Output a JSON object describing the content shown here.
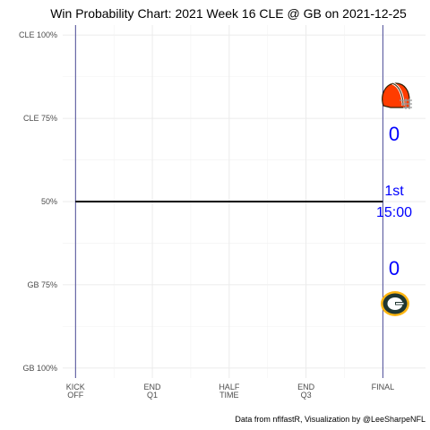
{
  "chart_data": {
    "type": "line",
    "title": "Win Probability Chart: 2021 Week 16 CLE @ GB on 2021-12-25",
    "caption": "Data from nflfastR, Visualization by @LeeSharpeNFL",
    "xlabel": "",
    "ylabel": "",
    "x_ticks": [
      {
        "value": 0,
        "lines": [
          "KICK",
          "OFF"
        ]
      },
      {
        "value": 900,
        "lines": [
          "END",
          "Q1"
        ]
      },
      {
        "value": 1800,
        "lines": [
          "HALF",
          "TIME"
        ]
      },
      {
        "value": 2700,
        "lines": [
          "END",
          "Q3"
        ]
      },
      {
        "value": 3600,
        "lines": [
          "FINAL"
        ]
      }
    ],
    "xlim": [
      -150,
      4100
    ],
    "y_ticks": [
      {
        "value": 1.0,
        "label": "CLE 100%"
      },
      {
        "value": 0.75,
        "label": "CLE 75%"
      },
      {
        "value": 0.5,
        "label": "50%"
      },
      {
        "value": 0.25,
        "label": "GB 75%"
      },
      {
        "value": 0.0,
        "label": "GB 100%"
      }
    ],
    "ylim": [
      -0.03,
      1.03
    ],
    "grid": true,
    "series": [
      {
        "x": [
          0,
          3600
        ],
        "y": [
          0.5,
          0.5
        ],
        "color": "#000000"
      }
    ],
    "vlines": [
      0,
      3600
    ],
    "vline_color": "#3b3b8f",
    "annotations": {
      "away": {
        "team": "CLE",
        "score": "0",
        "logo": "browns-helmet-icon",
        "color": "#FF3C00"
      },
      "home": {
        "team": "GB",
        "score": "0",
        "logo": "packers-g-icon",
        "color": "#203731"
      },
      "quarter": "1st",
      "clock": "15:00",
      "text_color": "#0000ff"
    }
  }
}
